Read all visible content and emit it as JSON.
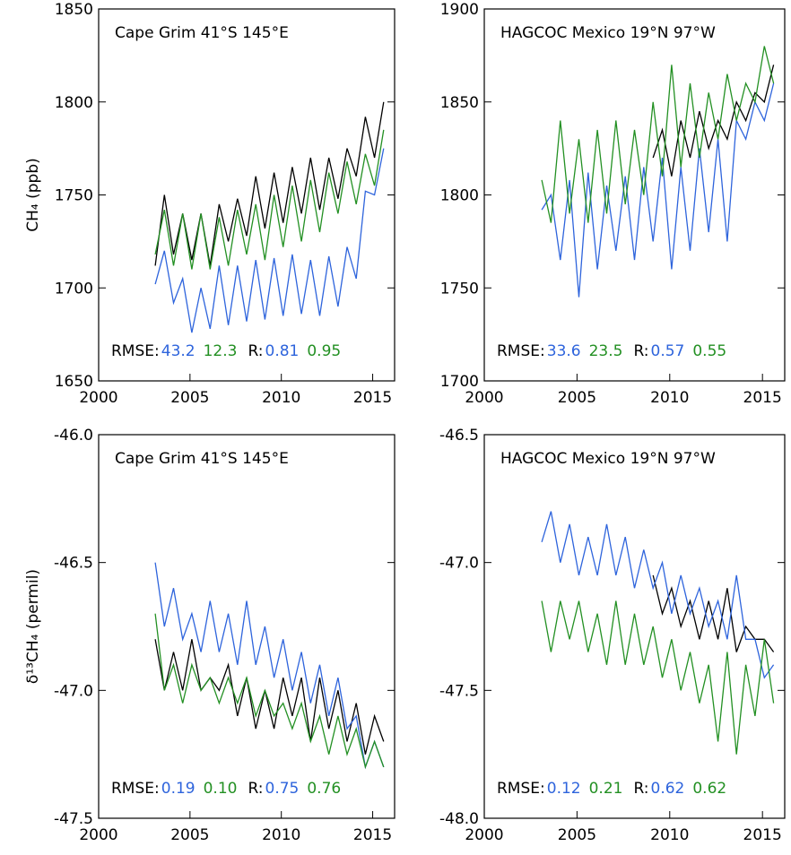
{
  "chart_data": [
    {
      "type": "line",
      "title": "Cape Grim 41°S 145°E",
      "ylabel": "CH₄ (ppb)",
      "x": [
        2003.1,
        2003.6,
        2004.1,
        2004.6,
        2005.1,
        2005.6,
        2006.1,
        2006.6,
        2007.1,
        2007.6,
        2008.1,
        2008.6,
        2009.1,
        2009.6,
        2010.1,
        2010.6,
        2011.1,
        2011.6,
        2012.1,
        2012.6,
        2013.1,
        2013.6,
        2014.1,
        2014.6,
        2015.1,
        2015.6
      ],
      "xlim": [
        2000,
        2016.2
      ],
      "xticks": [
        2000,
        2005,
        2010,
        2015
      ],
      "ylim": [
        1650,
        1850
      ],
      "yticks": [
        1650,
        1700,
        1750,
        1800,
        1850
      ],
      "series": [
        {
          "color": "#000000",
          "values": [
            1712,
            1750,
            1718,
            1740,
            1715,
            1740,
            1712,
            1745,
            1725,
            1748,
            1728,
            1760,
            1732,
            1762,
            1735,
            1765,
            1740,
            1770,
            1742,
            1770,
            1748,
            1775,
            1760,
            1792,
            1770,
            1800
          ]
        },
        {
          "color": "#2e64dc",
          "values": [
            1702,
            1720,
            1692,
            1705,
            1676,
            1700,
            1678,
            1712,
            1680,
            1712,
            1682,
            1715,
            1683,
            1716,
            1685,
            1718,
            1686,
            1715,
            1685,
            1717,
            1690,
            1722,
            1705,
            1752,
            1750,
            1775
          ]
        },
        {
          "color": "#239023",
          "values": [
            1718,
            1742,
            1712,
            1740,
            1710,
            1740,
            1710,
            1738,
            1712,
            1742,
            1718,
            1745,
            1715,
            1750,
            1722,
            1755,
            1725,
            1758,
            1730,
            1762,
            1740,
            1768,
            1745,
            1772,
            1755,
            1785
          ]
        }
      ],
      "stats": {
        "rmse_label": "RMSE:",
        "rmse": [
          "43.2",
          "12.3"
        ],
        "r_label": "R:",
        "r": [
          "0.81",
          "0.95"
        ]
      }
    },
    {
      "type": "line",
      "title": "HAGCOC Mexico 19°N 97°W",
      "x": [
        2003.1,
        2003.6,
        2004.1,
        2004.6,
        2005.1,
        2005.6,
        2006.1,
        2006.6,
        2007.1,
        2007.6,
        2008.1,
        2008.6,
        2009.1,
        2009.6,
        2010.1,
        2010.6,
        2011.1,
        2011.6,
        2012.1,
        2012.6,
        2013.1,
        2013.6,
        2014.1,
        2014.6,
        2015.1,
        2015.6
      ],
      "xlim": [
        2000,
        2016.2
      ],
      "xticks": [
        2000,
        2005,
        2010,
        2015
      ],
      "ylim": [
        1700,
        1900
      ],
      "yticks": [
        1700,
        1750,
        1800,
        1850,
        1900
      ],
      "series": [
        {
          "color": "#000000",
          "values": [
            null,
            null,
            null,
            null,
            null,
            null,
            null,
            null,
            null,
            null,
            null,
            null,
            1820,
            1835,
            1810,
            1840,
            1820,
            1845,
            1825,
            1840,
            1830,
            1850,
            1840,
            1855,
            1850,
            1870
          ]
        },
        {
          "color": "#2e64dc",
          "values": [
            1792,
            1800,
            1765,
            1808,
            1745,
            1812,
            1760,
            1805,
            1770,
            1810,
            1765,
            1815,
            1775,
            1820,
            1760,
            1815,
            1770,
            1825,
            1780,
            1830,
            1775,
            1840,
            1830,
            1850,
            1840,
            1860
          ]
        },
        {
          "color": "#239023",
          "values": [
            1808,
            1785,
            1840,
            1790,
            1830,
            1785,
            1835,
            1790,
            1840,
            1795,
            1835,
            1800,
            1850,
            1810,
            1870,
            1815,
            1860,
            1820,
            1855,
            1830,
            1865,
            1840,
            1860,
            1850,
            1880,
            1860
          ]
        }
      ],
      "stats": {
        "rmse_label": "RMSE:",
        "rmse": [
          "33.6",
          "23.5"
        ],
        "r_label": "R:",
        "r": [
          "0.57",
          "0.55"
        ]
      }
    },
    {
      "type": "line",
      "title": "Cape Grim 41°S 145°E",
      "ylabel": "δ¹³CH₄ (permil)",
      "x": [
        2003.1,
        2003.6,
        2004.1,
        2004.6,
        2005.1,
        2005.6,
        2006.1,
        2006.6,
        2007.1,
        2007.6,
        2008.1,
        2008.6,
        2009.1,
        2009.6,
        2010.1,
        2010.6,
        2011.1,
        2011.6,
        2012.1,
        2012.6,
        2013.1,
        2013.6,
        2014.1,
        2014.6,
        2015.1,
        2015.6
      ],
      "xlim": [
        2000,
        2016.2
      ],
      "xticks": [
        2000,
        2005,
        2010,
        2015
      ],
      "ylim": [
        -47.5,
        -46.0
      ],
      "yticks": [
        -47.5,
        {
          "value": -47,
          "label": "-47.0"
        },
        -46.5,
        {
          "value": -46,
          "label": "-46.0"
        }
      ],
      "series": [
        {
          "color": "#000000",
          "values": [
            -46.8,
            -47.0,
            -46.85,
            -47.0,
            -46.8,
            -47.0,
            -46.95,
            -47.0,
            -46.9,
            -47.1,
            -46.95,
            -47.15,
            -47.0,
            -47.15,
            -46.95,
            -47.1,
            -46.95,
            -47.2,
            -46.95,
            -47.15,
            -47.0,
            -47.2,
            -47.05,
            -47.25,
            -47.1,
            -47.2
          ]
        },
        {
          "color": "#2e64dc",
          "values": [
            -46.5,
            -46.75,
            -46.6,
            -46.8,
            -46.7,
            -46.85,
            -46.65,
            -46.85,
            -46.7,
            -46.9,
            -46.65,
            -46.9,
            -46.75,
            -46.95,
            -46.8,
            -47.0,
            -46.85,
            -47.05,
            -46.9,
            -47.1,
            -46.95,
            -47.15,
            -47.1,
            -47.3,
            -47.2,
            -47.3
          ]
        },
        {
          "color": "#239023",
          "values": [
            -46.7,
            -47.0,
            -46.9,
            -47.05,
            -46.9,
            -47.0,
            -46.95,
            -47.05,
            -46.95,
            -47.05,
            -46.95,
            -47.1,
            -47.0,
            -47.1,
            -47.05,
            -47.15,
            -47.05,
            -47.2,
            -47.1,
            -47.25,
            -47.1,
            -47.25,
            -47.15,
            -47.3,
            -47.2,
            -47.3
          ]
        }
      ],
      "stats": {
        "rmse_label": "RMSE:",
        "rmse": [
          "0.19",
          "0.10"
        ],
        "r_label": "R:",
        "r": [
          "0.75",
          "0.76"
        ]
      }
    },
    {
      "type": "line",
      "title": "HAGCOC Mexico 19°N 97°W",
      "x": [
        2003.1,
        2003.6,
        2004.1,
        2004.6,
        2005.1,
        2005.6,
        2006.1,
        2006.6,
        2007.1,
        2007.6,
        2008.1,
        2008.6,
        2009.1,
        2009.6,
        2010.1,
        2010.6,
        2011.1,
        2011.6,
        2012.1,
        2012.6,
        2013.1,
        2013.6,
        2014.1,
        2014.6,
        2015.1,
        2015.6
      ],
      "xlim": [
        2000,
        2016.2
      ],
      "xticks": [
        2000,
        2005,
        2010,
        2015
      ],
      "ylim": [
        -48.0,
        -46.5
      ],
      "yticks": [
        {
          "value": -48,
          "label": "-48.0"
        },
        -47.5,
        {
          "value": -47,
          "label": "-47.0"
        },
        -46.5
      ],
      "series": [
        {
          "color": "#000000",
          "values": [
            null,
            null,
            null,
            null,
            null,
            null,
            null,
            null,
            null,
            null,
            null,
            null,
            -47.05,
            -47.2,
            -47.1,
            -47.25,
            -47.15,
            -47.3,
            -47.15,
            -47.3,
            -47.1,
            -47.35,
            -47.25,
            -47.3,
            -47.3,
            -47.35
          ]
        },
        {
          "color": "#2e64dc",
          "values": [
            -46.92,
            -46.8,
            -47.0,
            -46.85,
            -47.05,
            -46.9,
            -47.05,
            -46.85,
            -47.05,
            -46.9,
            -47.1,
            -46.95,
            -47.1,
            -47.0,
            -47.2,
            -47.05,
            -47.2,
            -47.1,
            -47.25,
            -47.15,
            -47.3,
            -47.05,
            -47.3,
            -47.3,
            -47.45,
            -47.4
          ]
        },
        {
          "color": "#239023",
          "values": [
            -47.15,
            -47.35,
            -47.15,
            -47.3,
            -47.15,
            -47.35,
            -47.2,
            -47.4,
            -47.15,
            -47.4,
            -47.2,
            -47.4,
            -47.25,
            -47.45,
            -47.3,
            -47.5,
            -47.35,
            -47.55,
            -47.4,
            -47.7,
            -47.35,
            -47.75,
            -47.4,
            -47.6,
            -47.3,
            -47.55
          ]
        }
      ],
      "stats": {
        "rmse_label": "RMSE:",
        "rmse": [
          "0.12",
          "0.21"
        ],
        "r_label": "R:",
        "r": [
          "0.62",
          "0.62"
        ]
      }
    }
  ]
}
